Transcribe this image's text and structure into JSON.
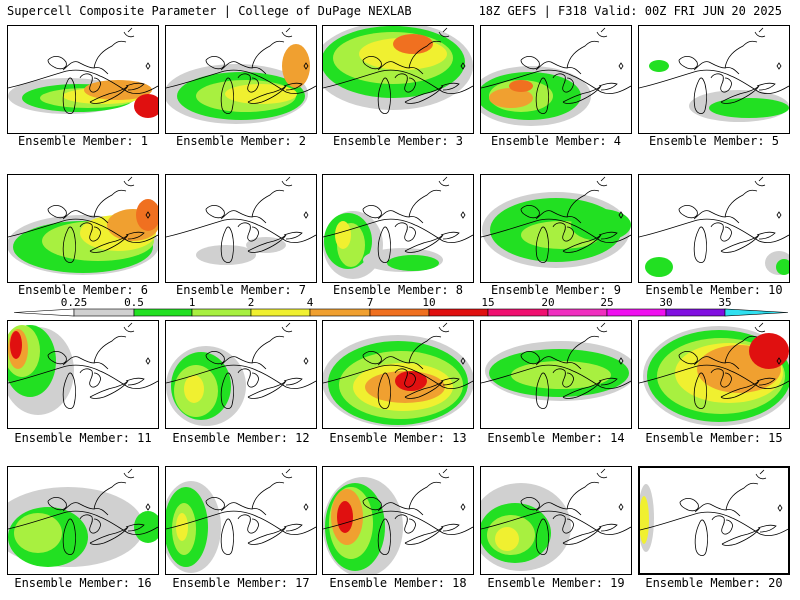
{
  "header": {
    "left_title": "Supercell Composite Parameter | College of DuPage NEXLAB",
    "right_title": "18Z GEFS | F318 Valid: 00Z FRI JUN 20 2025"
  },
  "colors": {
    "levels": [
      "#d0d0d0",
      "#22e022",
      "#a8f040",
      "#f0f030",
      "#f0a030",
      "#f07020",
      "#e01010",
      "#f01070",
      "#f030c0",
      "#f010f0",
      "#8010e0",
      "#b070e0",
      "#30e0f0"
    ],
    "coast": "#000000"
  },
  "legend": {
    "ticks": [
      "0.25",
      "0.5",
      "1",
      "2",
      "4",
      "7",
      "10",
      "15",
      "20",
      "25",
      "30",
      "35"
    ]
  },
  "panels": [
    {
      "label": "Ensemble Member: 1",
      "selected": false
    },
    {
      "label": "Ensemble Member: 2",
      "selected": false
    },
    {
      "label": "Ensemble Member: 3",
      "selected": false
    },
    {
      "label": "Ensemble Member: 4",
      "selected": false
    },
    {
      "label": "Ensemble Member: 5",
      "selected": false
    },
    {
      "label": "Ensemble Member: 6",
      "selected": false
    },
    {
      "label": "Ensemble Member: 7",
      "selected": false
    },
    {
      "label": "Ensemble Member: 8",
      "selected": false
    },
    {
      "label": "Ensemble Member: 9",
      "selected": false
    },
    {
      "label": "Ensemble Member: 10",
      "selected": false
    },
    {
      "label": "Ensemble Member: 11",
      "selected": false
    },
    {
      "label": "Ensemble Member: 12",
      "selected": false
    },
    {
      "label": "Ensemble Member: 13",
      "selected": false
    },
    {
      "label": "Ensemble Member: 14",
      "selected": false
    },
    {
      "label": "Ensemble Member: 15",
      "selected": false
    },
    {
      "label": "Ensemble Member: 16",
      "selected": false
    },
    {
      "label": "Ensemble Member: 17",
      "selected": false
    },
    {
      "label": "Ensemble Member: 18",
      "selected": false
    },
    {
      "label": "Ensemble Member: 19",
      "selected": false
    },
    {
      "label": "Ensemble Member: 20",
      "selected": true
    }
  ]
}
